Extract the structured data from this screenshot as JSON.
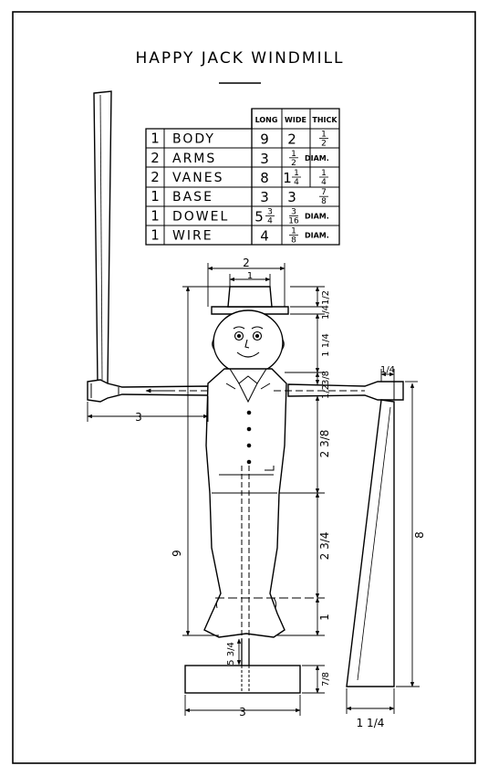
{
  "title": "HAPPY JACK WINDMILL",
  "table": {
    "headers": [
      "LONG",
      "WIDE",
      "THICK"
    ],
    "rows": [
      {
        "qty": "1",
        "part": "BODY",
        "long": "9",
        "long_frac": "",
        "wide": "2",
        "wide_frac": "",
        "thick": "1/2"
      },
      {
        "qty": "2",
        "part": "ARMS",
        "long": "3",
        "long_frac": "",
        "wide": "",
        "wide_frac": "1/2",
        "thick": "DIAM."
      },
      {
        "qty": "2",
        "part": "VANES",
        "long": "8",
        "long_frac": "",
        "wide": "1",
        "wide_frac": "1/4",
        "thick": "1/4"
      },
      {
        "qty": "1",
        "part": "BASE",
        "long": "3",
        "long_frac": "",
        "wide": "3",
        "wide_frac": "",
        "thick": "7/8"
      },
      {
        "qty": "1",
        "part": "DOWEL",
        "long": "5",
        "long_frac": "3/4",
        "wide": "",
        "wide_frac": "3/16",
        "thick": "DIAM."
      },
      {
        "qty": "1",
        "part": "WIRE",
        "long": "4",
        "long_frac": "",
        "wide": "",
        "wide_frac": "1/8",
        "thick": "DIAM."
      }
    ]
  },
  "dimensions": {
    "hat_width": "2",
    "hat_top": "1",
    "hat_height_right": "1/2",
    "hat_brim_right": "1/4",
    "head_height": "1 1/4",
    "arm_width": "3/8",
    "arm_lower": "1/2",
    "torso": "2 3/8",
    "legs": "2 3/4",
    "feet": "1",
    "body_height": "9",
    "arm_length": "3",
    "vane_length": "8",
    "vane_tip": "1/4",
    "vane_width": "1 1/4",
    "dowel_length": "5 3/4",
    "base_thickness": "7/8",
    "base_width": "3"
  }
}
